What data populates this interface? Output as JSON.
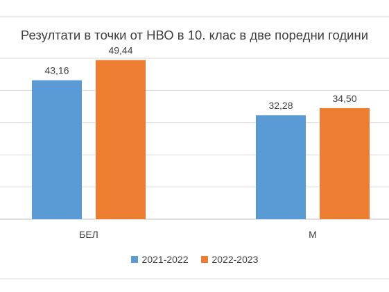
{
  "chart_data": {
    "type": "bar",
    "title": "Резултати в точки от НВО в 10. клас в две поредни години",
    "categories": [
      "БЕЛ",
      "М"
    ],
    "series": [
      {
        "name": "2021-2022",
        "values": [
          43.16,
          32.28
        ],
        "labels": [
          "43,16",
          "32,28"
        ],
        "color": "#5B9BD5"
      },
      {
        "name": "2022-2023",
        "values": [
          49.44,
          34.5
        ],
        "labels": [
          "49,44",
          "34,50"
        ],
        "color": "#ED7D31"
      }
    ],
    "ylim": [
      0,
      50
    ],
    "grid": true,
    "legend_position": "bottom"
  }
}
